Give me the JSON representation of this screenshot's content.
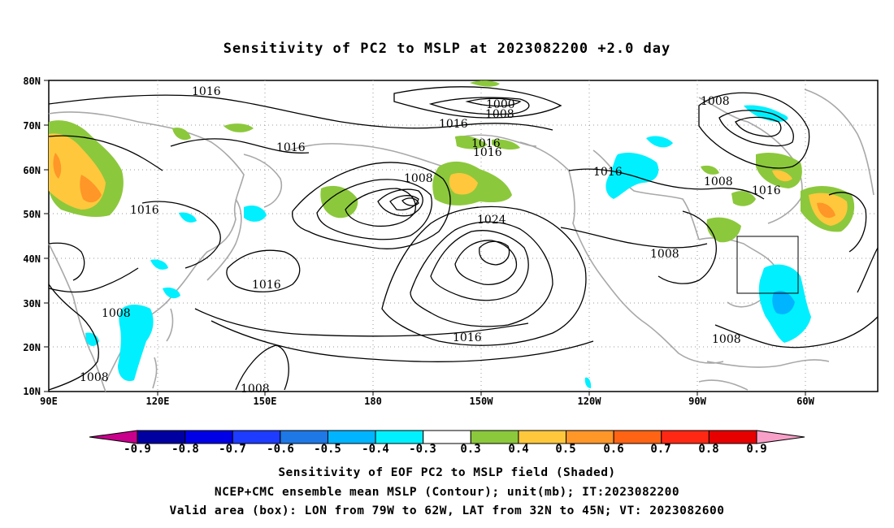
{
  "title": "Sensitivity of PC2 to MSLP at 2023082200 +2.0 day",
  "lat_labels": [
    "80N",
    "70N",
    "60N",
    "50N",
    "40N",
    "30N",
    "20N",
    "10N"
  ],
  "lon_labels": [
    "90E",
    "120E",
    "150E",
    "180",
    "150W",
    "120W",
    "90W",
    "60W"
  ],
  "contour_labels": [
    "1016",
    "1000",
    "1008",
    "1016",
    "1016",
    "1016",
    "1016",
    "1008",
    "1016",
    "1008",
    "1016",
    "1008",
    "1016",
    "1008",
    "1024",
    "1008",
    "1016",
    "1008",
    "1016",
    "1008",
    "1008",
    "1008"
  ],
  "colorbar": {
    "labels": [
      "-0.9",
      "-0.8",
      "-0.7",
      "-0.6",
      "-0.5",
      "-0.4",
      "-0.3",
      "0.3",
      "0.4",
      "0.5",
      "0.6",
      "0.7",
      "0.8",
      "0.9"
    ],
    "colors": [
      "#c8008c",
      "#0000a0",
      "#0000e6",
      "#1e3cff",
      "#1e78e6",
      "#00b4ff",
      "#00f0ff",
      "#ffffff",
      "#8cc83c",
      "#ffc83c",
      "#ff9628",
      "#ff6414",
      "#ff2814",
      "#e60000",
      "#f8a0c8"
    ]
  },
  "captions": [
    "Sensitivity of EOF PC2 to MSLP field (Shaded)",
    "NCEP+CMC ensemble mean MSLP (Contour); unit(mb); IT:2023082200",
    "Valid area (box): LON from 79W to 62W, LAT from 32N to 45N; VT: 2023082600"
  ]
}
